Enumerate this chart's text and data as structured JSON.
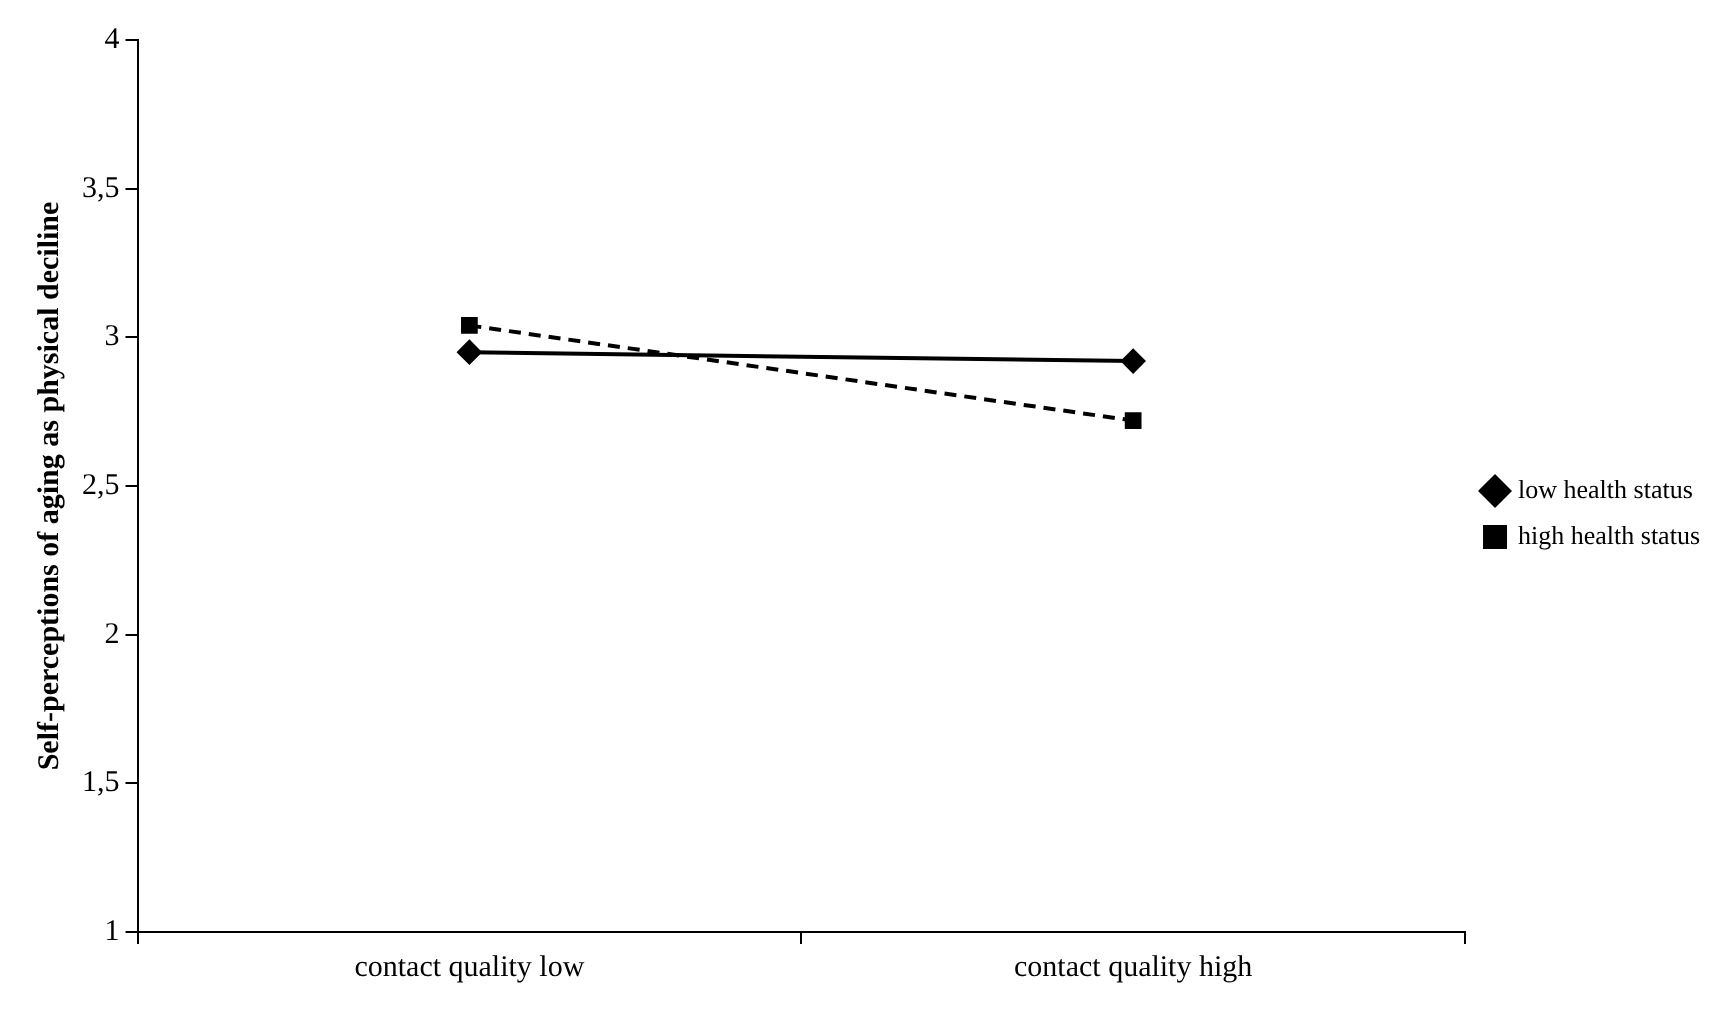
{
  "chart_data": {
    "type": "line",
    "ylabel": "Self-perceptions of aging as physical deciline",
    "categories": [
      "contact quality low",
      "contact quality high"
    ],
    "series": [
      {
        "name": "low health status",
        "color": "#000000",
        "values": [
          2.95,
          2.92
        ],
        "marker": "diamond",
        "line_style": "solid"
      },
      {
        "name": "high health status",
        "color": "#000000",
        "values": [
          3.04,
          2.72
        ],
        "marker": "square",
        "line_style": "dashed"
      }
    ],
    "ylim": [
      1,
      4
    ],
    "yticks": [
      1,
      {
        "value": 1.5,
        "label": "1,5"
      },
      2,
      {
        "value": 2.5,
        "label": "2,5"
      },
      3,
      {
        "value": 3.5,
        "label": "3,5"
      },
      4
    ],
    "grid": false,
    "legend": "right"
  }
}
